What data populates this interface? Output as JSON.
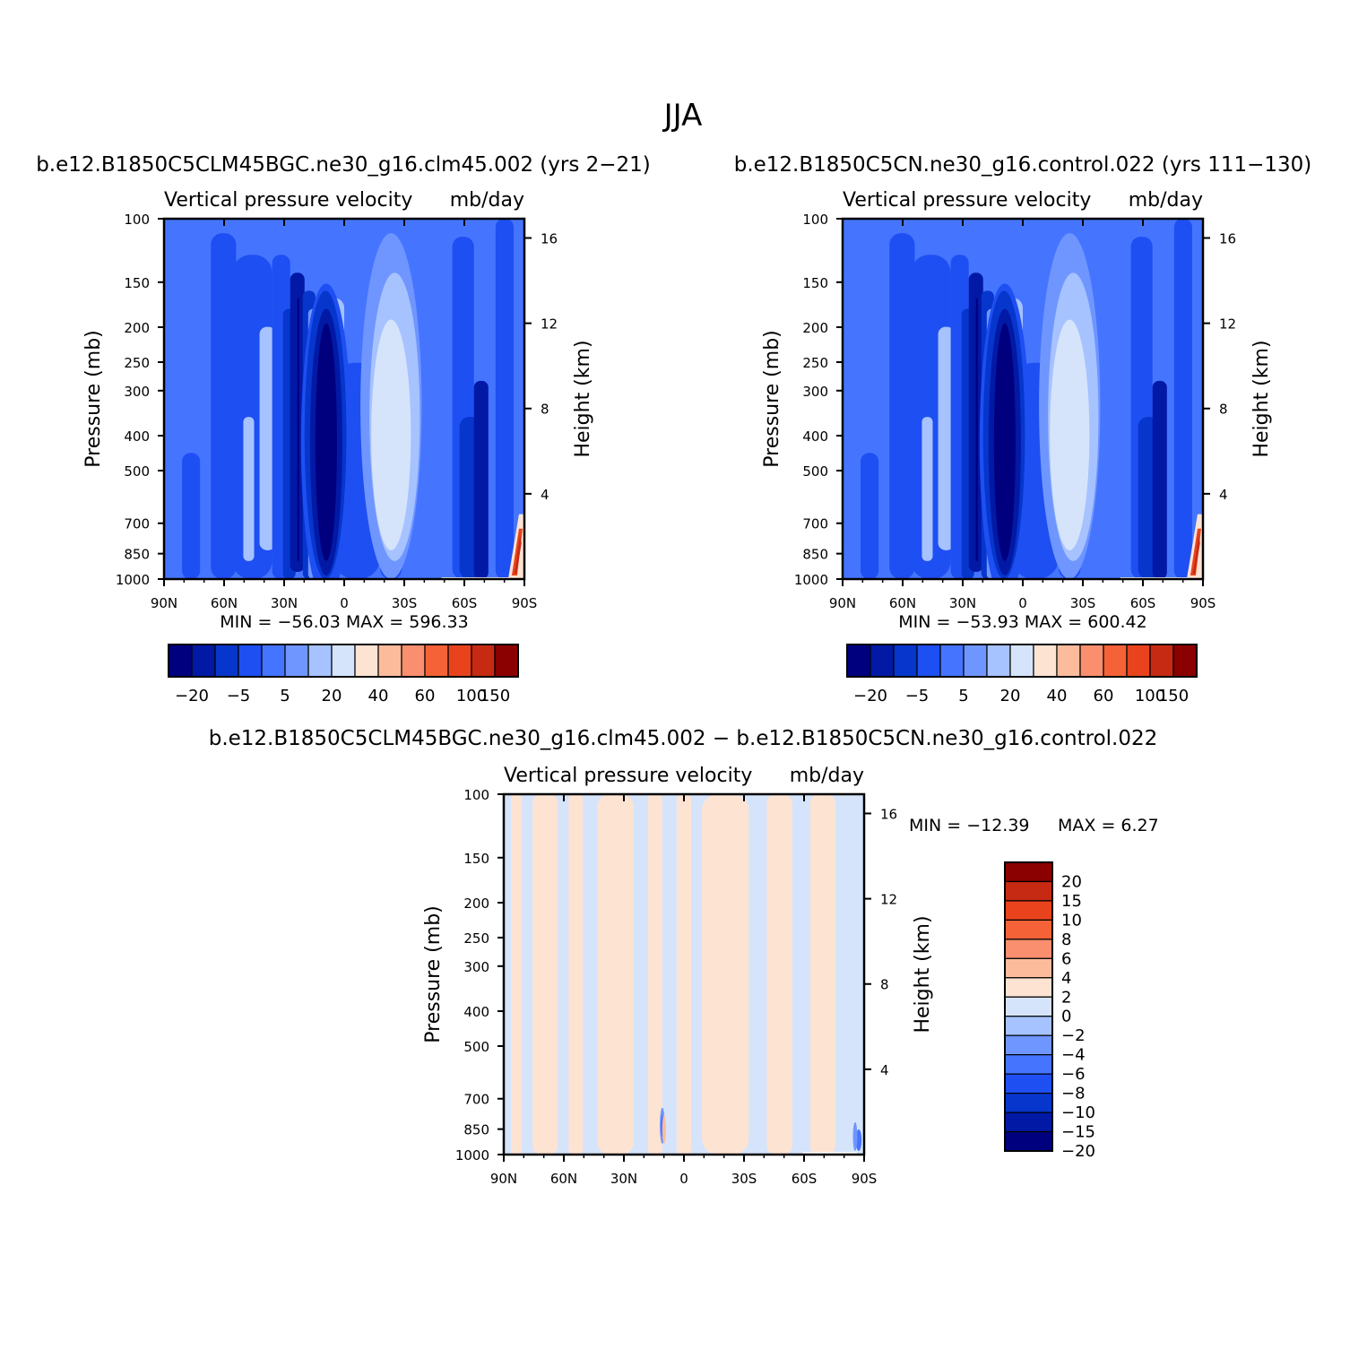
{
  "figure": {
    "title": "JJA"
  },
  "panels": {
    "top_left": {
      "case": "b.e12.B1850C5CLM45BGC.ne30_g16.clm45.002 (yrs 2−21)",
      "variable": "Vertical pressure velocity",
      "units": "mb/day",
      "stats": "MIN = −56.03   MAX = 596.33"
    },
    "top_right": {
      "case": "b.e12.B1850C5CN.ne30_g16.control.022 (yrs 111−130)",
      "variable": "Vertical pressure velocity",
      "units": "mb/day",
      "stats": "MIN = −53.93   MAX = 600.42"
    },
    "bottom": {
      "case": "b.e12.B1850C5CLM45BGC.ne30_g16.clm45.002 − b.e12.B1850C5CN.ne30_g16.control.022",
      "variable": "Vertical pressure velocity",
      "units": "mb/day",
      "stats_min": "MIN = −12.39",
      "stats_max": "MAX =     6.27"
    }
  },
  "axes": {
    "ylabel": "Pressure (mb)",
    "ylabel_right": "Height (km)",
    "pressure_ticks": [
      "100",
      "150",
      "200",
      "250",
      "300",
      "400",
      "500",
      "700",
      "850",
      "1000"
    ],
    "height_ticks": [
      "16",
      "12",
      "8",
      "4"
    ],
    "lat_ticks": [
      "90N",
      "60N",
      "30N",
      "0",
      "30S",
      "60S",
      "90S"
    ]
  },
  "chart_data": [
    {
      "type": "heatmap",
      "panel": "top_left",
      "x_axis": "latitude",
      "xlim": [
        "90N",
        "90S"
      ],
      "y_axis": "pressure (mb)",
      "ylim": [
        1000,
        100
      ],
      "y_scale": "log",
      "y2_axis": "height (km)",
      "y2_ticks": [
        4,
        8,
        12,
        16
      ],
      "min": -56.03,
      "max": 596.33,
      "colorbar": {
        "labels": [
          "−20",
          "−5",
          "5",
          "20",
          "40",
          "60",
          "100",
          "150"
        ],
        "colors": [
          "#00007f",
          "#0219a5",
          "#0636cc",
          "#1e4ff2",
          "#4575ff",
          "#6f96ff",
          "#a6c2ff",
          "#d5e4fb",
          "#fde3d2",
          "#fcbc9c",
          "#f98f6e",
          "#f66238",
          "#e9431d",
          "#c72a13",
          "#8b0000"
        ]
      }
    },
    {
      "type": "heatmap",
      "panel": "top_right",
      "x_axis": "latitude",
      "xlim": [
        "90N",
        "90S"
      ],
      "y_axis": "pressure (mb)",
      "ylim": [
        1000,
        100
      ],
      "y_scale": "log",
      "y2_axis": "height (km)",
      "y2_ticks": [
        4,
        8,
        12,
        16
      ],
      "min": -53.93,
      "max": 600.42,
      "colorbar": {
        "labels": [
          "−20",
          "−5",
          "5",
          "20",
          "40",
          "60",
          "100",
          "150"
        ],
        "colors": [
          "#00007f",
          "#0219a5",
          "#0636cc",
          "#1e4ff2",
          "#4575ff",
          "#6f96ff",
          "#a6c2ff",
          "#d5e4fb",
          "#fde3d2",
          "#fcbc9c",
          "#f98f6e",
          "#f66238",
          "#e9431d",
          "#c72a13",
          "#8b0000"
        ]
      }
    },
    {
      "type": "heatmap",
      "panel": "bottom",
      "x_axis": "latitude",
      "xlim": [
        "90N",
        "90S"
      ],
      "y_axis": "pressure (mb)",
      "ylim": [
        1000,
        100
      ],
      "y_scale": "log",
      "y2_axis": "height (km)",
      "y2_ticks": [
        4,
        8,
        12,
        16
      ],
      "min": -12.39,
      "max": 6.27,
      "colorbar": {
        "labels": [
          "20",
          "15",
          "10",
          "8",
          "6",
          "4",
          "2",
          "0",
          "−2",
          "−4",
          "−6",
          "−8",
          "−10",
          "−15",
          "−20"
        ],
        "colors": [
          "#8b0000",
          "#c72a13",
          "#e9431d",
          "#f66238",
          "#f98f6e",
          "#fcbc9c",
          "#fde3d2",
          "#d5e4fb",
          "#a6c2ff",
          "#6f96ff",
          "#4575ff",
          "#1e4ff2",
          "#0636cc",
          "#0219a5",
          "#00007f"
        ]
      }
    }
  ]
}
